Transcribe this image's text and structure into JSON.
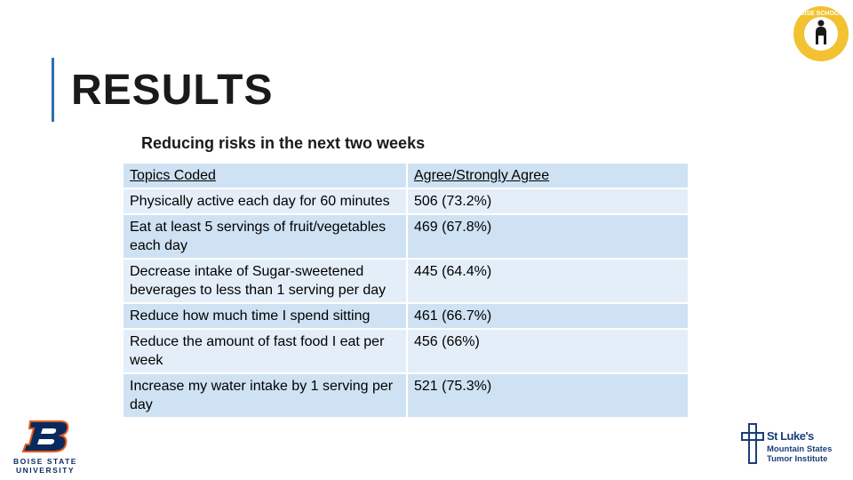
{
  "slide": {
    "title": "RESULTS",
    "subtitle": "Reducing risks in the next two weeks"
  },
  "table": {
    "headers": [
      "Topics Coded",
      "Agree/Strongly Agree"
    ],
    "rows": [
      {
        "topic": "Physically active each day for 60 minutes",
        "value": "506 (73.2%)"
      },
      {
        "topic": "Eat at least 5 servings of fruit/vegetables each day",
        "value": "469 (67.8%)"
      },
      {
        "topic": "Decrease intake of Sugar-sweetened beverages to less than 1 serving per day",
        "value": "445 (64.4%)"
      },
      {
        "topic": "Reduce how much time I spend sitting",
        "value": "461 (66.7%)"
      },
      {
        "topic": "Reduce the amount of fast food I eat per week",
        "value": "456 (66%)"
      },
      {
        "topic": "Increase my water intake by 1 serving per day",
        "value": "521 (75.3%)"
      }
    ]
  },
  "logos": {
    "boise_schools": "BOISE SCHOOLS",
    "bsu_line1": "BOISE STATE",
    "bsu_line2": "UNIVERSITY",
    "stlukes_name": "St Luke's",
    "stlukes_line1": "Mountain States",
    "stlukes_line2": "Tumor Institute"
  },
  "colors": {
    "accent": "#2f6fb5",
    "table_header": "#cfe2f3",
    "table_row_light": "#e4eef8",
    "bsu_navy": "#0a2a5e",
    "boise_schools_gold": "#f2c230"
  }
}
